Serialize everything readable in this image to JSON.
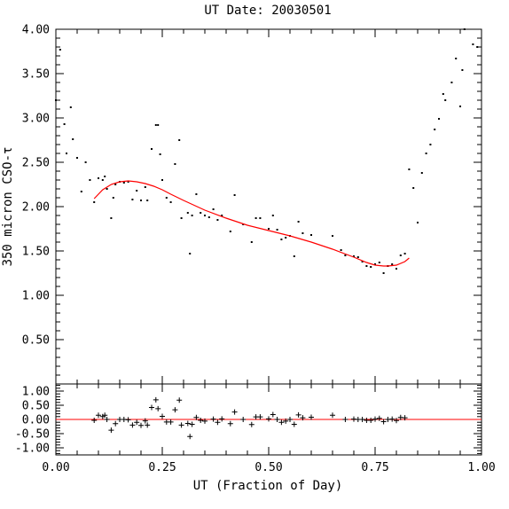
{
  "chart_data": {
    "title": "UT Date: 20030501",
    "xlabel": "UT (Fraction of Day)",
    "ylabel": "350 micron CSO-τ",
    "colors": {
      "fit": "#ff0000",
      "points": "#000000",
      "axes": "#000000"
    },
    "main": {
      "type": "scatter",
      "xlim": [
        0.0,
        1.0
      ],
      "ylim": [
        0.0,
        4.0
      ],
      "yticks": [
        "0.50",
        "1.00",
        "1.50",
        "2.00",
        "2.50",
        "3.00",
        "3.50",
        "4.00"
      ],
      "ytick_values": [
        0.5,
        1.0,
        1.5,
        2.0,
        2.5,
        3.0,
        3.5,
        4.0
      ],
      "points": [
        [
          0.0,
          3.2
        ],
        [
          0.01,
          3.77
        ],
        [
          0.02,
          2.93
        ],
        [
          0.025,
          2.6
        ],
        [
          0.035,
          3.12
        ],
        [
          0.04,
          2.76
        ],
        [
          0.05,
          2.55
        ],
        [
          0.06,
          2.17
        ],
        [
          0.07,
          2.5
        ],
        [
          0.08,
          2.3
        ],
        [
          0.09,
          2.05
        ],
        [
          0.1,
          2.32
        ],
        [
          0.11,
          2.3
        ],
        [
          0.115,
          2.34
        ],
        [
          0.12,
          2.2
        ],
        [
          0.13,
          1.87
        ],
        [
          0.135,
          2.1
        ],
        [
          0.14,
          2.25
        ],
        [
          0.15,
          2.28
        ],
        [
          0.16,
          2.27
        ],
        [
          0.17,
          2.28
        ],
        [
          0.18,
          2.08
        ],
        [
          0.19,
          2.18
        ],
        [
          0.2,
          2.07
        ],
        [
          0.21,
          2.22
        ],
        [
          0.215,
          2.07
        ],
        [
          0.225,
          2.65
        ],
        [
          0.235,
          2.92
        ],
        [
          0.24,
          2.92
        ],
        [
          0.245,
          2.59
        ],
        [
          0.25,
          2.3
        ],
        [
          0.26,
          2.1
        ],
        [
          0.27,
          2.05
        ],
        [
          0.28,
          2.48
        ],
        [
          0.29,
          2.75
        ],
        [
          0.295,
          1.87
        ],
        [
          0.31,
          1.93
        ],
        [
          0.315,
          1.47
        ],
        [
          0.32,
          1.9
        ],
        [
          0.33,
          2.14
        ],
        [
          0.34,
          1.93
        ],
        [
          0.35,
          1.9
        ],
        [
          0.36,
          1.88
        ],
        [
          0.37,
          1.97
        ],
        [
          0.38,
          1.85
        ],
        [
          0.39,
          1.9
        ],
        [
          0.41,
          1.72
        ],
        [
          0.42,
          2.13
        ],
        [
          0.44,
          1.8
        ],
        [
          0.46,
          1.6
        ],
        [
          0.47,
          1.87
        ],
        [
          0.48,
          1.87
        ],
        [
          0.5,
          1.75
        ],
        [
          0.51,
          1.9
        ],
        [
          0.52,
          1.74
        ],
        [
          0.53,
          1.63
        ],
        [
          0.54,
          1.65
        ],
        [
          0.55,
          1.67
        ],
        [
          0.56,
          1.44
        ],
        [
          0.57,
          1.83
        ],
        [
          0.58,
          1.7
        ],
        [
          0.6,
          1.68
        ],
        [
          0.65,
          1.67
        ],
        [
          0.67,
          1.51
        ],
        [
          0.68,
          1.45
        ],
        [
          0.7,
          1.44
        ],
        [
          0.71,
          1.43
        ],
        [
          0.72,
          1.38
        ],
        [
          0.73,
          1.33
        ],
        [
          0.74,
          1.32
        ],
        [
          0.75,
          1.35
        ],
        [
          0.76,
          1.37
        ],
        [
          0.77,
          1.25
        ],
        [
          0.78,
          1.33
        ],
        [
          0.79,
          1.35
        ],
        [
          0.8,
          1.3
        ],
        [
          0.81,
          1.45
        ],
        [
          0.82,
          1.47
        ],
        [
          0.83,
          2.42
        ],
        [
          0.84,
          2.21
        ],
        [
          0.85,
          1.82
        ],
        [
          0.86,
          2.38
        ],
        [
          0.87,
          2.6
        ],
        [
          0.88,
          2.7
        ],
        [
          0.89,
          2.87
        ],
        [
          0.9,
          2.99
        ],
        [
          0.91,
          3.27
        ],
        [
          0.915,
          3.2
        ],
        [
          0.93,
          3.4
        ],
        [
          0.94,
          3.67
        ],
        [
          0.95,
          3.13
        ],
        [
          0.955,
          3.54
        ],
        [
          0.96,
          4.0
        ],
        [
          0.98,
          3.83
        ],
        [
          0.99,
          3.8
        ]
      ],
      "fit_curve": {
        "x": [
          0.09,
          0.11,
          0.13,
          0.15,
          0.17,
          0.19,
          0.21,
          0.23,
          0.25,
          0.27,
          0.3,
          0.35,
          0.4,
          0.45,
          0.5,
          0.55,
          0.6,
          0.65,
          0.7,
          0.73,
          0.75,
          0.77,
          0.78,
          0.8,
          0.82,
          0.83
        ],
        "y": [
          2.09,
          2.19,
          2.25,
          2.28,
          2.29,
          2.28,
          2.26,
          2.23,
          2.19,
          2.14,
          2.07,
          1.96,
          1.87,
          1.79,
          1.73,
          1.67,
          1.6,
          1.52,
          1.43,
          1.37,
          1.34,
          1.33,
          1.33,
          1.34,
          1.38,
          1.42
        ]
      }
    },
    "residuals": {
      "type": "scatter",
      "xlim": [
        0.0,
        1.0
      ],
      "ylim": [
        -1.25,
        1.25
      ],
      "yticks": [
        "1.00",
        "0.50",
        "0.00",
        "-0.50",
        "-1.00"
      ],
      "ytick_values": [
        1.0,
        0.5,
        0.0,
        -0.5,
        -1.0
      ],
      "zero_line": 0.0,
      "points": [
        [
          0.09,
          -0.03
        ],
        [
          0.1,
          0.15
        ],
        [
          0.11,
          0.1
        ],
        [
          0.115,
          0.15
        ],
        [
          0.12,
          0.0
        ],
        [
          0.13,
          -0.38
        ],
        [
          0.14,
          -0.15
        ],
        [
          0.15,
          0.0
        ],
        [
          0.16,
          0.0
        ],
        [
          0.17,
          -0.01
        ],
        [
          0.18,
          -0.2
        ],
        [
          0.19,
          -0.1
        ],
        [
          0.2,
          -0.21
        ],
        [
          0.21,
          -0.05
        ],
        [
          0.215,
          -0.2
        ],
        [
          0.225,
          0.42
        ],
        [
          0.235,
          0.69
        ],
        [
          0.24,
          0.38
        ],
        [
          0.25,
          0.11
        ],
        [
          0.26,
          -0.09
        ],
        [
          0.27,
          -0.09
        ],
        [
          0.28,
          0.34
        ],
        [
          0.29,
          0.68
        ],
        [
          0.295,
          -0.2
        ],
        [
          0.31,
          -0.14
        ],
        [
          0.315,
          -0.6
        ],
        [
          0.32,
          -0.17
        ],
        [
          0.33,
          0.07
        ],
        [
          0.34,
          -0.03
        ],
        [
          0.35,
          -0.06
        ],
        [
          0.37,
          0.01
        ],
        [
          0.38,
          -0.1
        ],
        [
          0.39,
          0.02
        ],
        [
          0.41,
          -0.15
        ],
        [
          0.42,
          0.26
        ],
        [
          0.44,
          0.0
        ],
        [
          0.46,
          -0.18
        ],
        [
          0.47,
          0.09
        ],
        [
          0.48,
          0.09
        ],
        [
          0.5,
          0.02
        ],
        [
          0.51,
          0.17
        ],
        [
          0.52,
          0.0
        ],
        [
          0.53,
          -0.1
        ],
        [
          0.54,
          -0.06
        ],
        [
          0.55,
          0.0
        ],
        [
          0.56,
          -0.17
        ],
        [
          0.57,
          0.16
        ],
        [
          0.58,
          0.06
        ],
        [
          0.6,
          0.08
        ],
        [
          0.65,
          0.15
        ],
        [
          0.68,
          0.0
        ],
        [
          0.7,
          0.01
        ],
        [
          0.71,
          0.0
        ],
        [
          0.72,
          0.0
        ],
        [
          0.73,
          -0.03
        ],
        [
          0.74,
          -0.03
        ],
        [
          0.75,
          0.01
        ],
        [
          0.76,
          0.04
        ],
        [
          0.77,
          -0.08
        ],
        [
          0.78,
          0.0
        ],
        [
          0.79,
          0.01
        ],
        [
          0.8,
          -0.04
        ],
        [
          0.81,
          0.07
        ],
        [
          0.82,
          0.06
        ]
      ]
    },
    "xticks": [
      "0.00",
      "0.25",
      "0.50",
      "0.75",
      "1.00"
    ],
    "xtick_values": [
      0.0,
      0.25,
      0.5,
      0.75,
      1.0
    ]
  }
}
